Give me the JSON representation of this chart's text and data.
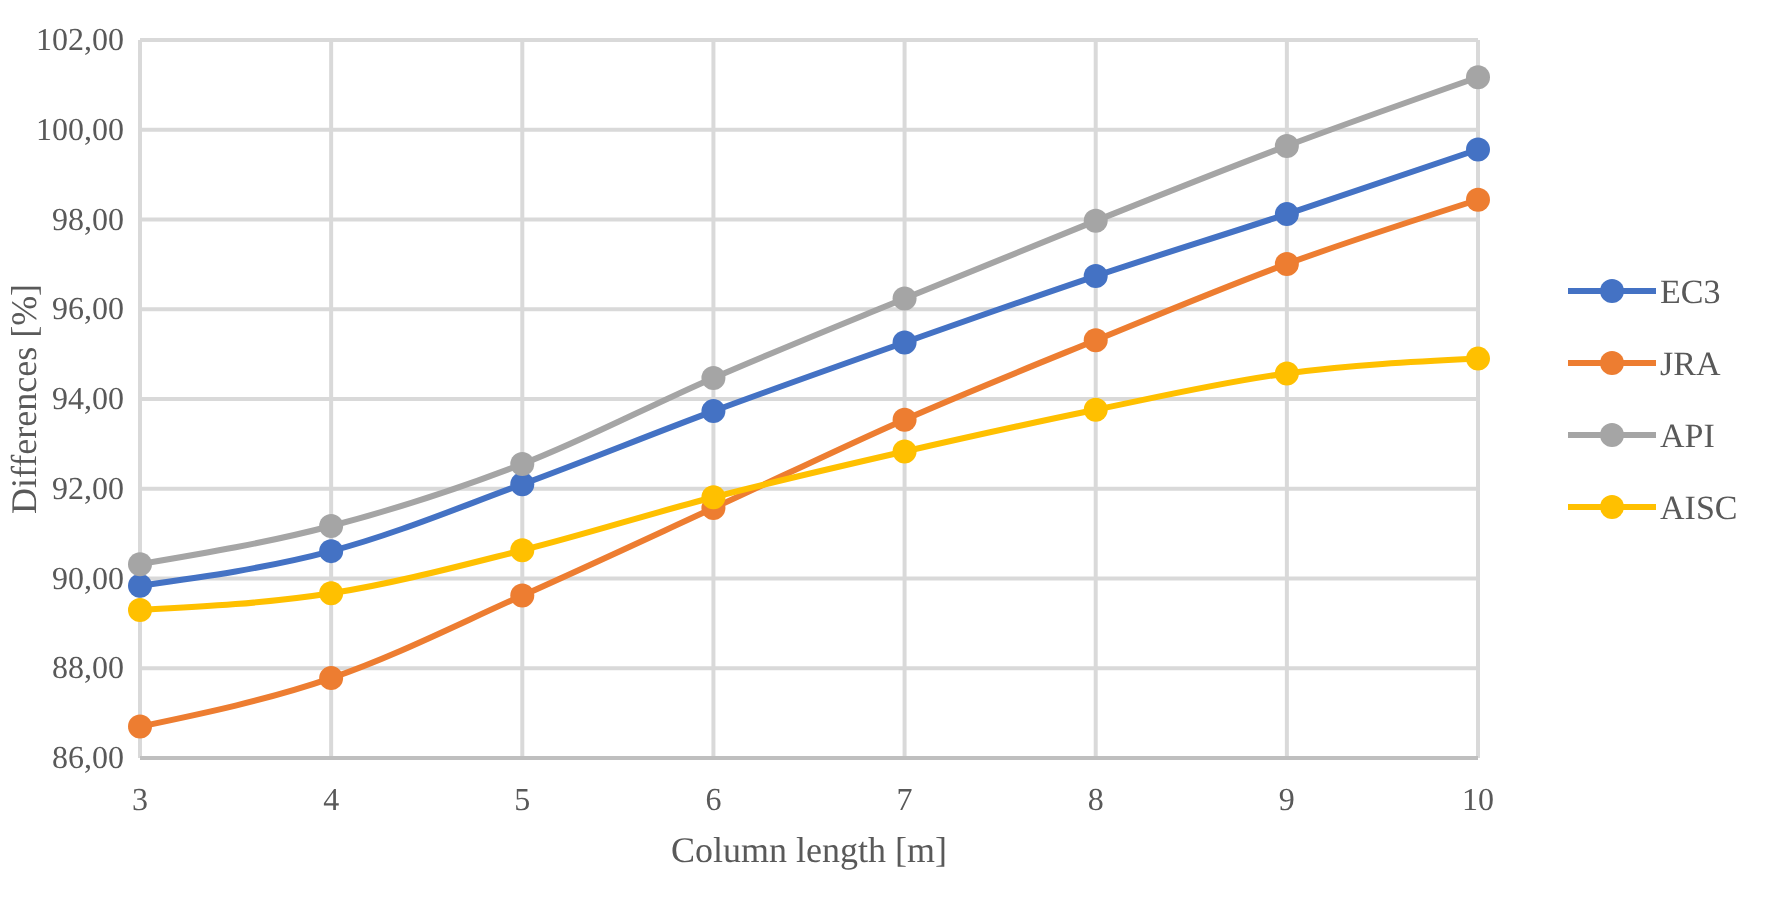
{
  "chart_data": {
    "type": "line",
    "xlabel": "Column length [m]",
    "ylabel": "Differences [%]",
    "x": [
      3,
      4,
      5,
      6,
      7,
      8,
      9,
      10
    ],
    "series": [
      {
        "name": "EC3",
        "color": "#4472c4",
        "values": [
          89.84,
          90.61,
          92.1,
          93.73,
          95.26,
          96.74,
          98.12,
          99.56
        ]
      },
      {
        "name": "JRA",
        "color": "#ed7d31",
        "values": [
          86.7,
          87.78,
          89.62,
          91.57,
          93.54,
          95.31,
          97.01,
          98.44
        ]
      },
      {
        "name": "API",
        "color": "#a5a5a5",
        "values": [
          90.32,
          91.17,
          92.55,
          94.47,
          96.24,
          97.97,
          99.64,
          101.17
        ]
      },
      {
        "name": "AISC",
        "color": "#ffc000",
        "values": [
          89.3,
          89.67,
          90.63,
          91.81,
          92.83,
          93.76,
          94.57,
          94.9
        ]
      }
    ],
    "xlim": [
      3,
      10
    ],
    "xticks": [
      3,
      4,
      5,
      6,
      7,
      8,
      9,
      10
    ],
    "ylim": [
      86,
      102
    ],
    "yticks": [
      {
        "value": 86,
        "label": "86,00"
      },
      {
        "value": 88,
        "label": "88,00"
      },
      {
        "value": 90,
        "label": "90,00"
      },
      {
        "value": 92,
        "label": "92,00"
      },
      {
        "value": 94,
        "label": "94,00"
      },
      {
        "value": 96,
        "label": "96,00"
      },
      {
        "value": 98,
        "label": "98,00"
      },
      {
        "value": 100,
        "label": "100,00"
      },
      {
        "value": 102,
        "label": "102,00"
      }
    ],
    "grid": true,
    "legend": "right",
    "marker": "circle",
    "line_style": "solid"
  }
}
